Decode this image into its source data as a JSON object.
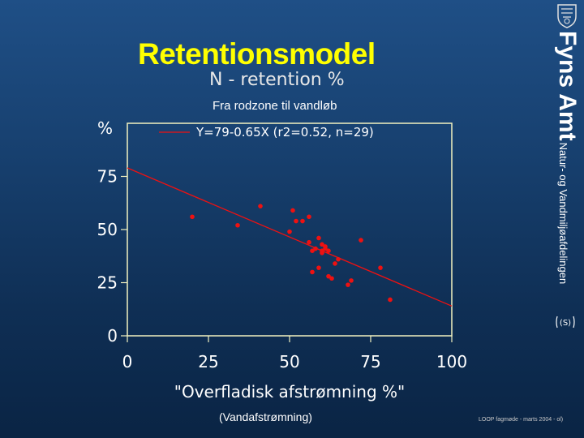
{
  "title": "Retentionsmodel",
  "subtitle": "N - retention %",
  "route": "Fra rodzone til vandløb",
  "caption": "(Vandafstrømning)",
  "footer": "LOOP fagmøde  - marts 2004 - ol)",
  "brand": {
    "name": "Fyns Amt",
    "department": "Natur- og Vandmiljøafdelingen",
    "logo_icon": "coat-of-arms-icon",
    "mark_icon": "hand-mark-icon",
    "mark_text": "(S)"
  },
  "colors": {
    "background": "#17406f",
    "title": "#ffff00",
    "points": "#ee1111",
    "regression": "#ee1111",
    "plot_frame": "#f2f2c0"
  },
  "chart_data": {
    "type": "scatter",
    "title": "",
    "ylabel": "%",
    "xlabel": "\"Overfladisk afstrømning %\"",
    "xlim": [
      0,
      100
    ],
    "ylim": [
      0,
      100
    ],
    "xticks": [
      0,
      25,
      50,
      75,
      100
    ],
    "yticks": [
      0,
      25,
      50,
      75
    ],
    "grid": false,
    "legend": {
      "position": "top",
      "entries": [
        "Y=79-0.65X (r2=0.52, n=29)"
      ]
    },
    "regression": {
      "intercept": 79,
      "slope": -0.65,
      "r2": 0.52,
      "n": 29,
      "x_range": [
        0,
        100
      ]
    },
    "series": [
      {
        "name": "Y=79-0.65X (r2=0.52, n=29)",
        "points": [
          [
            20,
            56
          ],
          [
            34,
            52
          ],
          [
            41,
            61
          ],
          [
            51,
            59
          ],
          [
            52,
            54
          ],
          [
            54,
            54
          ],
          [
            56,
            56
          ],
          [
            50,
            49
          ],
          [
            56,
            44
          ],
          [
            57,
            40
          ],
          [
            58,
            41
          ],
          [
            59,
            46
          ],
          [
            60,
            43
          ],
          [
            60,
            40
          ],
          [
            61,
            42
          ],
          [
            61,
            41
          ],
          [
            59,
            32
          ],
          [
            57,
            30
          ],
          [
            62,
            28
          ],
          [
            63,
            27
          ],
          [
            64,
            34
          ],
          [
            65,
            36
          ],
          [
            68,
            24
          ],
          [
            69,
            26
          ],
          [
            72,
            45
          ],
          [
            78,
            32
          ],
          [
            81,
            17
          ],
          [
            60,
            39
          ],
          [
            62,
            40
          ]
        ]
      }
    ]
  }
}
